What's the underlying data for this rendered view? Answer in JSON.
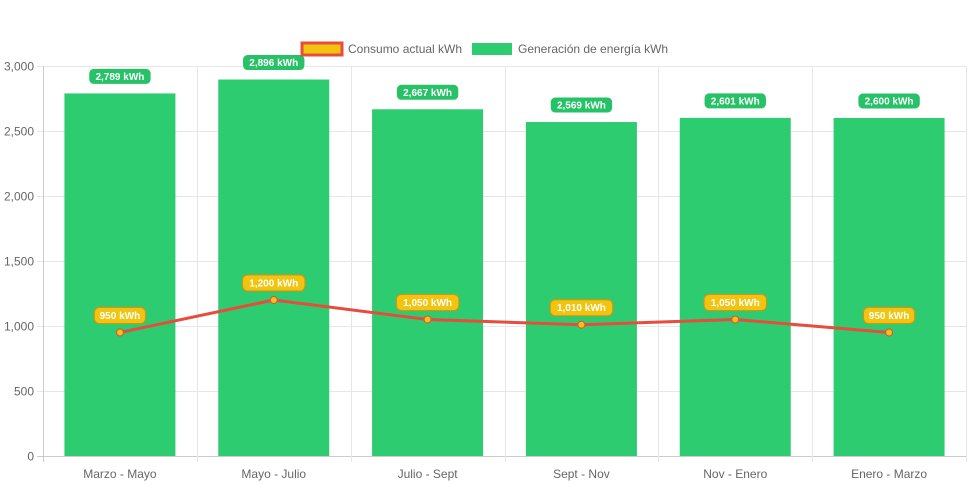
{
  "chart_data": {
    "type": "bar",
    "categories": [
      "Marzo - Mayo",
      "Mayo - Julio",
      "Julio - Sept",
      "Sept - Nov",
      "Nov - Enero",
      "Enero - Marzo"
    ],
    "series": [
      {
        "name": "Generación de energía kWh",
        "type": "bar",
        "values": [
          2789,
          2896,
          2667,
          2569,
          2601,
          2600
        ],
        "labels": [
          "2,789 kWh",
          "2,896 kWh",
          "2,667 kWh",
          "2,569 kWh",
          "2,601 kWh",
          "2,600 kWh"
        ],
        "color": "#2ecc71"
      },
      {
        "name": "Consumo actual kWh",
        "type": "line",
        "values": [
          950,
          1200,
          1050,
          1010,
          1050,
          950
        ],
        "labels": [
          "950 kWh",
          "1,200 kWh",
          "1,050 kWh",
          "1,010 kWh",
          "1,050 kWh",
          "950 kWh"
        ],
        "color": "#e74c3c",
        "fill_color": "#f1c40f"
      }
    ],
    "ylim": [
      0,
      3000
    ],
    "yticks": [
      0,
      500,
      1000,
      1500,
      2000,
      2500,
      3000
    ],
    "ytick_labels": [
      "0",
      "500",
      "1,000",
      "1,500",
      "2,000",
      "2,500",
      "3,000"
    ],
    "grid": true,
    "legend_position": "top-center"
  }
}
